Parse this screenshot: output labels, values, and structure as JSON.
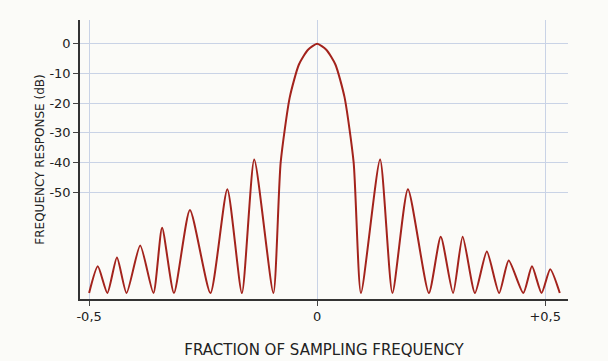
{
  "chart_data": {
    "type": "line",
    "x_label": "FRACTION OF SAMPLING FREQUENCY",
    "y_label": "FREQUENCY RESPONSE (dB)",
    "x": [
      -0.5,
      -0.481,
      -0.46,
      -0.439,
      -0.418,
      -0.388,
      -0.359,
      -0.34,
      -0.314,
      -0.279,
      -0.234,
      -0.197,
      -0.165,
      -0.138,
      -0.096,
      -0.08,
      -0.06,
      -0.04,
      -0.02,
      0,
      0.02,
      0.04,
      0.06,
      0.08,
      0.096,
      0.138,
      0.165,
      0.199,
      0.245,
      0.271,
      0.298,
      0.319,
      0.346,
      0.372,
      0.399,
      0.42,
      0.452,
      0.471,
      0.492,
      0.511,
      0.532
    ],
    "values": [
      -84,
      -75,
      -84,
      -72,
      -84,
      -68,
      -84,
      -62,
      -84,
      -56,
      -84,
      -49,
      -84,
      -39,
      -84,
      -40,
      -18,
      -7,
      -2,
      0,
      -2,
      -7,
      -18,
      -40,
      -84,
      -39,
      -84,
      -49,
      -84,
      -65,
      -84,
      -65,
      -84,
      -70,
      -84,
      -73,
      -84,
      -75,
      -84,
      -76,
      -84
    ],
    "color": "#a3231c",
    "xlim": [
      -0.52,
      0.55
    ],
    "ylim": [
      -86,
      8
    ],
    "xticks": [
      {
        "value": -0.5,
        "label": "-0,5"
      },
      0,
      {
        "value": 0.5,
        "label": "+0,5"
      }
    ],
    "yticks": [
      0,
      -10,
      -20,
      -30,
      -40,
      -50
    ],
    "grid": true
  }
}
